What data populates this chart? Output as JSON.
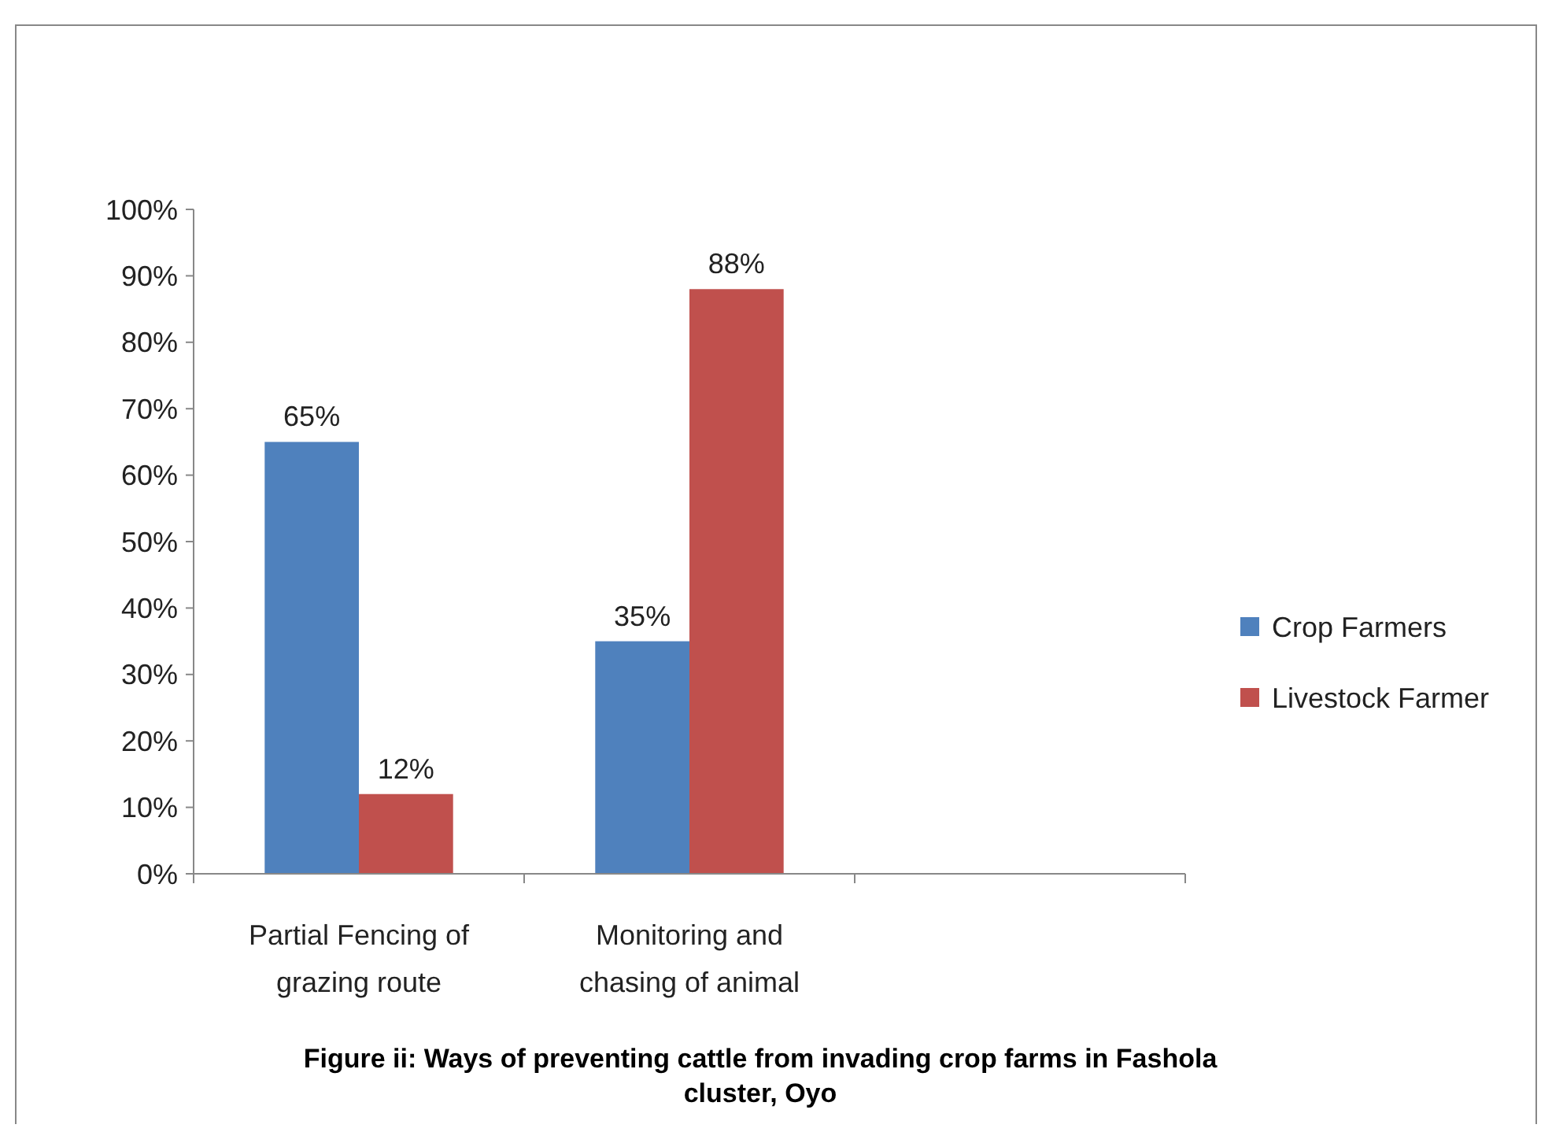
{
  "chart_data": {
    "type": "bar",
    "title": "Figure ii: Ways of preventing cattle from invading crop farms in Fashola cluster, Oyo",
    "categories": [
      "Partial Fencing of grazing route",
      "Monitoring and chasing of animal",
      null
    ],
    "series": [
      {
        "name": "Crop Farmers",
        "color": "#4f81bd",
        "values": [
          65,
          35,
          null
        ],
        "value_labels": [
          "65%",
          "35%",
          null
        ]
      },
      {
        "name": "Livestock Farmer",
        "color": "#c0504d",
        "values": [
          12,
          88,
          null
        ],
        "value_labels": [
          "12%",
          "88%",
          null
        ]
      }
    ],
    "ylim": [
      0,
      100
    ],
    "yticks": [
      {
        "value": 0,
        "label": "0%"
      },
      {
        "value": 10,
        "label": "10%"
      },
      {
        "value": 20,
        "label": "20%"
      },
      {
        "value": 30,
        "label": "30%"
      },
      {
        "value": 40,
        "label": "40%"
      },
      {
        "value": 50,
        "label": "50%"
      },
      {
        "value": 60,
        "label": "60%"
      },
      {
        "value": 70,
        "label": "70%"
      },
      {
        "value": 80,
        "label": "80%"
      },
      {
        "value": 90,
        "label": "90%"
      },
      {
        "value": 100,
        "label": "100%"
      }
    ],
    "grid": false,
    "legend": "right"
  }
}
